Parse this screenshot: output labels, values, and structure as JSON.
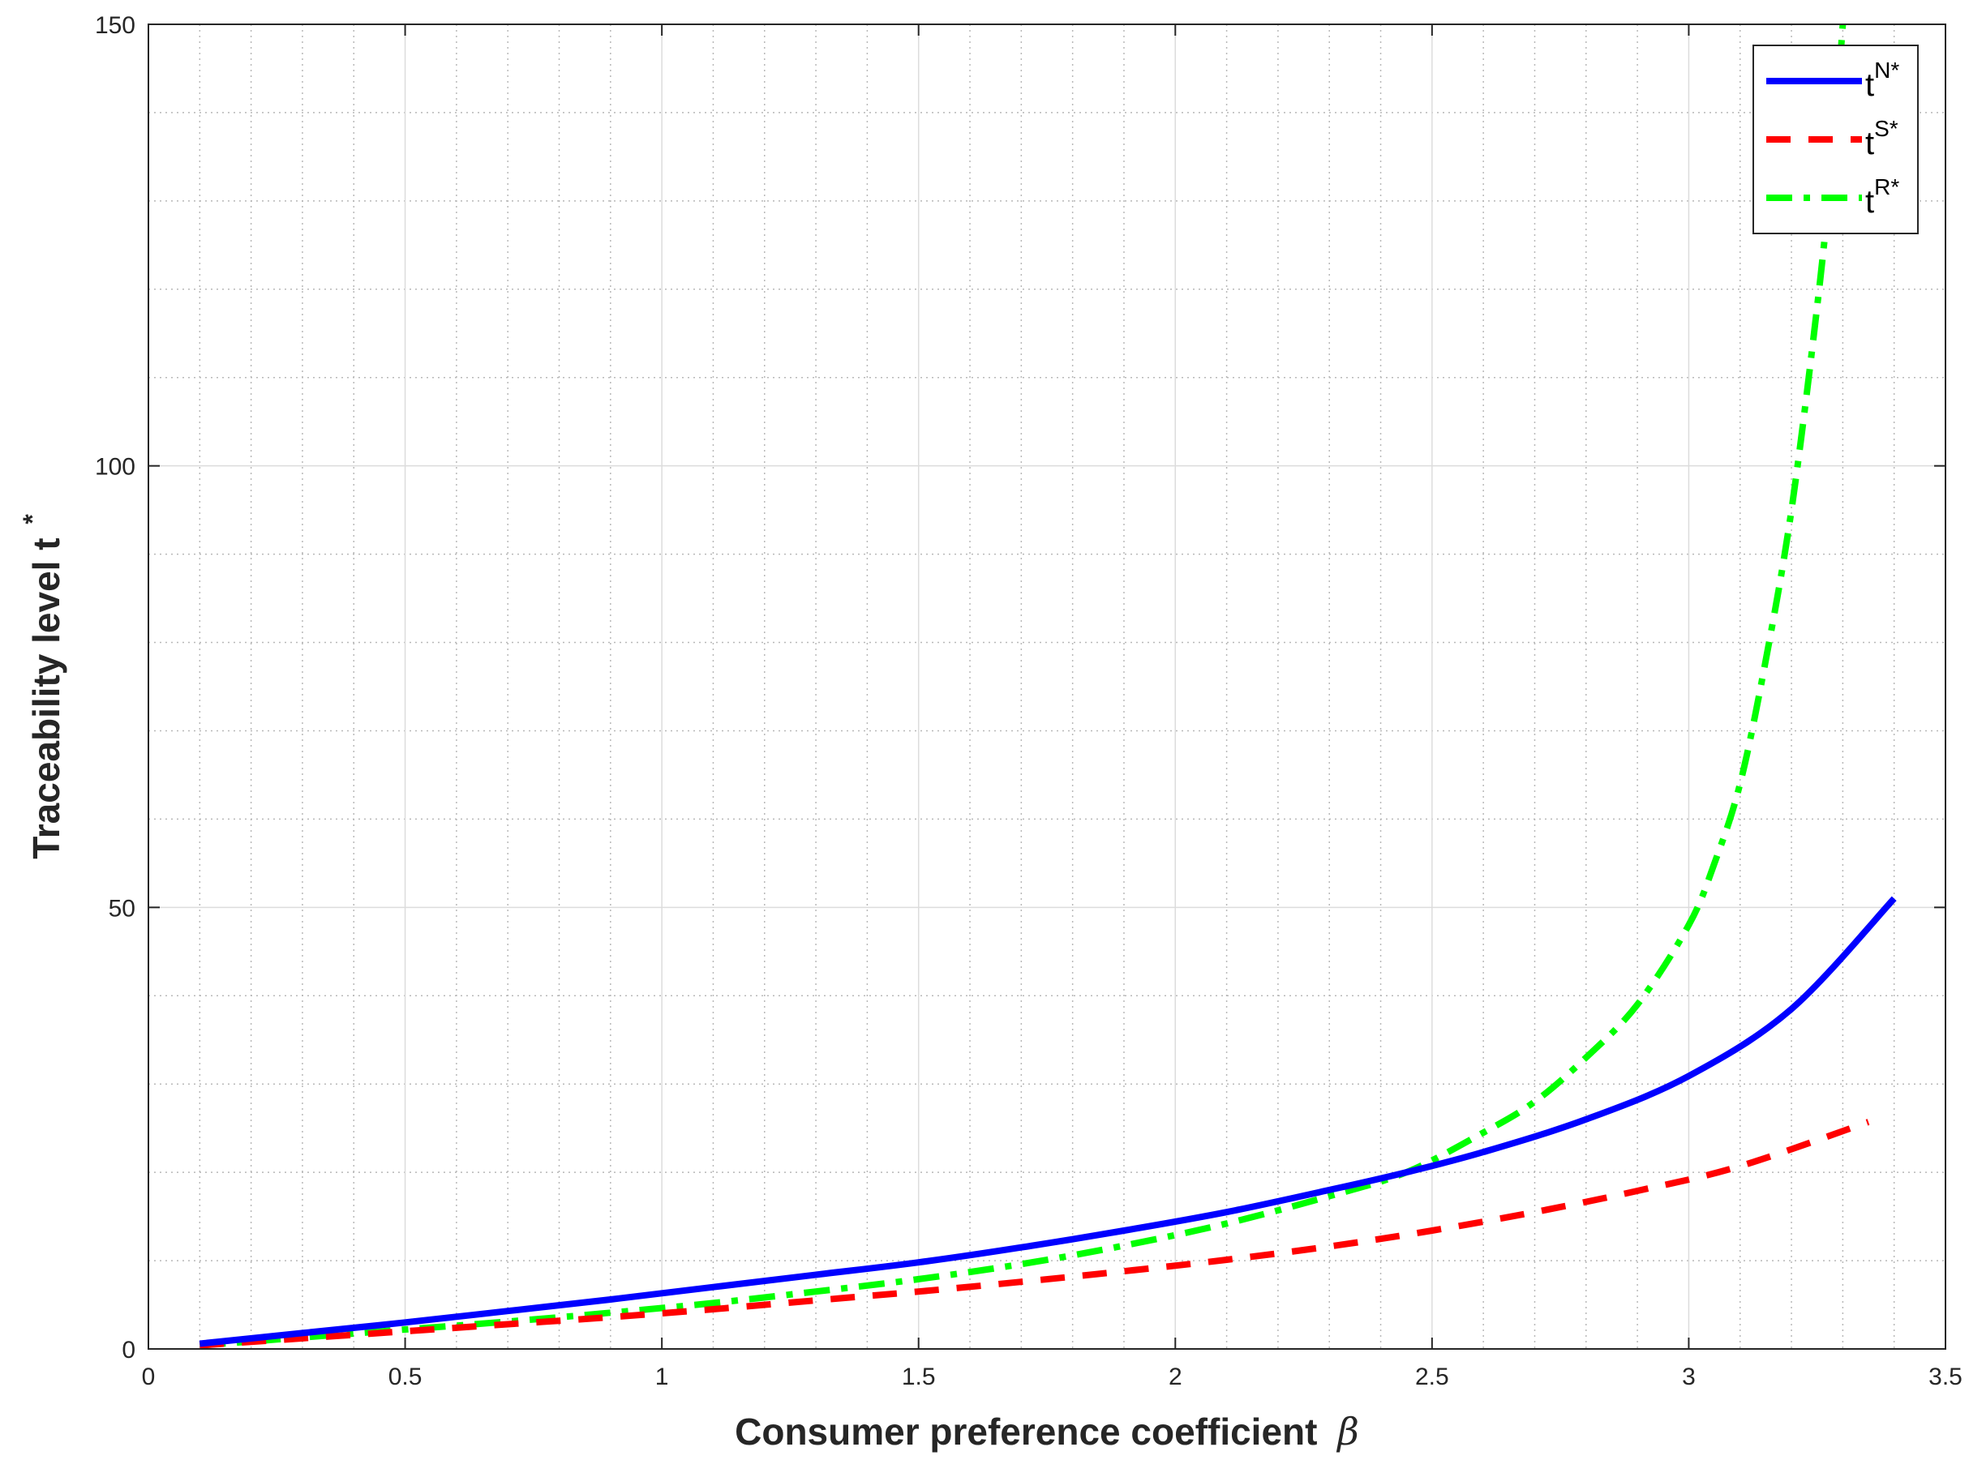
{
  "chart_data": {
    "type": "line",
    "xlabel": "Consumer preference coefficient",
    "xlabel_symbol": "β",
    "ylabel": "Traceability level t",
    "ylabel_sup": "*",
    "xlim": [
      0,
      3.5
    ],
    "ylim": [
      0,
      150
    ],
    "xticks": [
      "0",
      "0.5",
      "1",
      "1.5",
      "2",
      "2.5",
      "3",
      "3.5"
    ],
    "yticks": [
      "0",
      "50",
      "100",
      "150"
    ],
    "grid": true,
    "minor_grid": true,
    "legend_position": "top-right",
    "series": [
      {
        "name": "t",
        "name_sup": "N*",
        "color": "#0000ff",
        "style": "solid",
        "x": [
          0.1,
          0.3,
          0.5,
          0.7,
          0.9,
          1.1,
          1.3,
          1.5,
          1.7,
          1.9,
          2.1,
          2.3,
          2.45,
          2.6,
          2.8,
          3.0,
          3.2,
          3.4
        ],
        "y": [
          0.6,
          1.8,
          3.0,
          4.3,
          5.6,
          7.0,
          8.4,
          9.8,
          11.5,
          13.4,
          15.5,
          18.0,
          20.0,
          22.3,
          26.0,
          30.9,
          38.5,
          51.0
        ]
      },
      {
        "name": "t",
        "name_sup": "S*",
        "color": "#ff0000",
        "style": "dashed",
        "x": [
          0.1,
          0.3,
          0.5,
          0.7,
          0.9,
          1.1,
          1.3,
          1.5,
          1.7,
          1.9,
          2.1,
          2.3,
          2.5,
          2.7,
          2.9,
          3.1,
          3.35
        ],
        "y": [
          0.4,
          1.2,
          2.0,
          2.8,
          3.6,
          4.5,
          5.5,
          6.5,
          7.6,
          8.8,
          10.1,
          11.6,
          13.4,
          15.5,
          17.9,
          20.7,
          25.7
        ]
      },
      {
        "name": "t",
        "name_sup": "R*",
        "color": "#00ff00",
        "style": "dash-dot",
        "x": [
          0.1,
          0.3,
          0.5,
          0.7,
          0.9,
          1.1,
          1.3,
          1.5,
          1.7,
          1.9,
          2.1,
          2.3,
          2.45,
          2.6,
          2.7,
          2.8,
          2.9,
          3.0,
          3.05,
          3.1,
          3.15,
          3.2,
          3.25,
          3.28,
          3.3
        ],
        "y": [
          0.4,
          1.3,
          2.2,
          3.1,
          4.1,
          5.2,
          6.5,
          7.9,
          9.6,
          11.7,
          14.2,
          17.3,
          20.0,
          24.5,
          28.0,
          33.0,
          39.0,
          48.0,
          55.0,
          64.0,
          78.0,
          95.0,
          118.0,
          135.0,
          150.0
        ]
      }
    ]
  }
}
